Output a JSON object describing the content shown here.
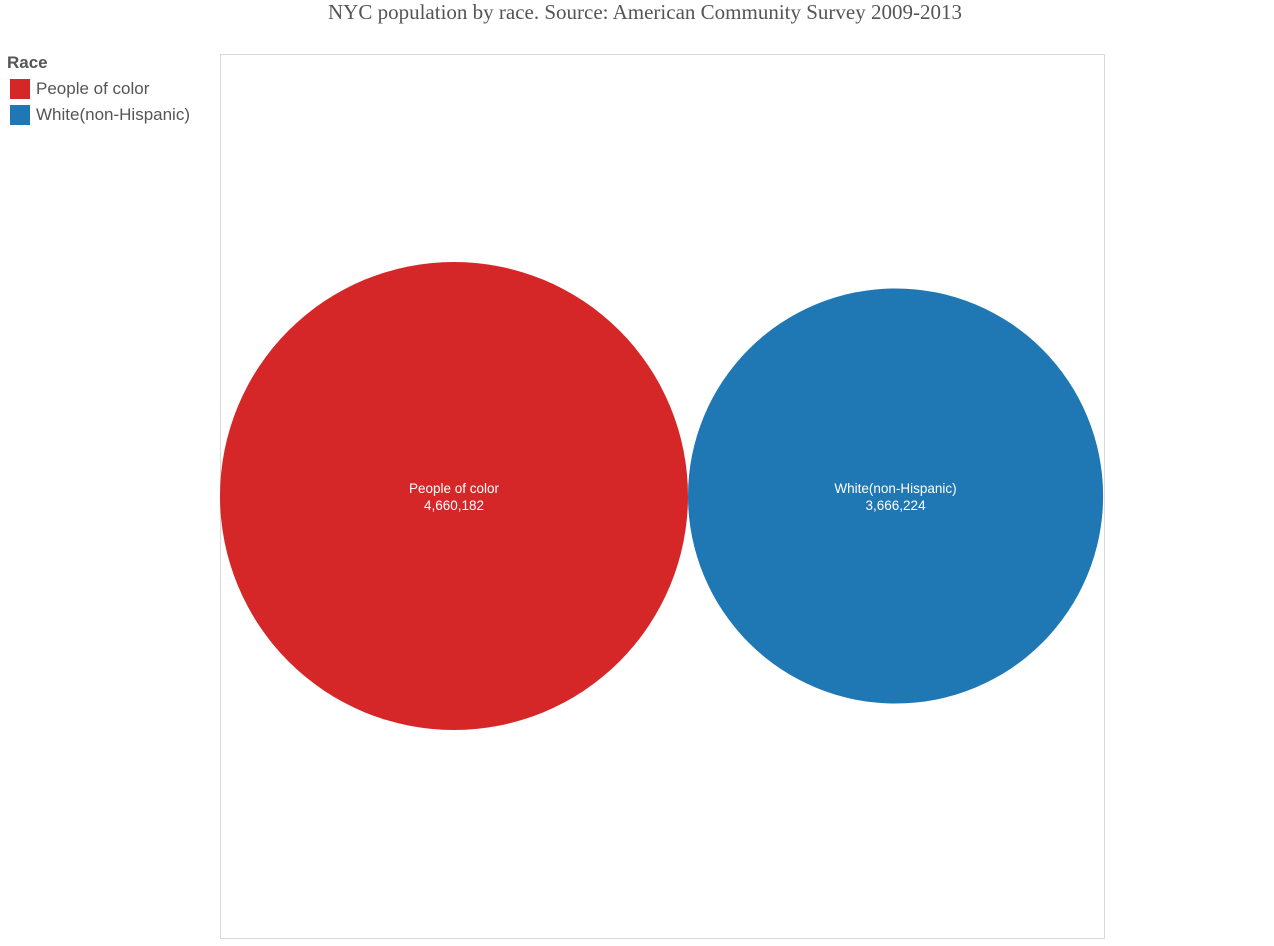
{
  "chart_data": {
    "type": "bubble",
    "title": "NYC population by race. Source: American Community Survey 2009-2013",
    "legend": {
      "title": "Race",
      "placement": "left"
    },
    "series": [
      {
        "name": "People of color",
        "value": 4660182,
        "value_label": "4,660,182",
        "color": "#d62728"
      },
      {
        "name": "White(non-Hispanic)",
        "value": 3666224,
        "value_label": "3,666,224",
        "color": "#1f77b4"
      }
    ]
  },
  "colors": {
    "frame": "#d9d9d9",
    "text": "#555555",
    "label": "#ffffff"
  }
}
